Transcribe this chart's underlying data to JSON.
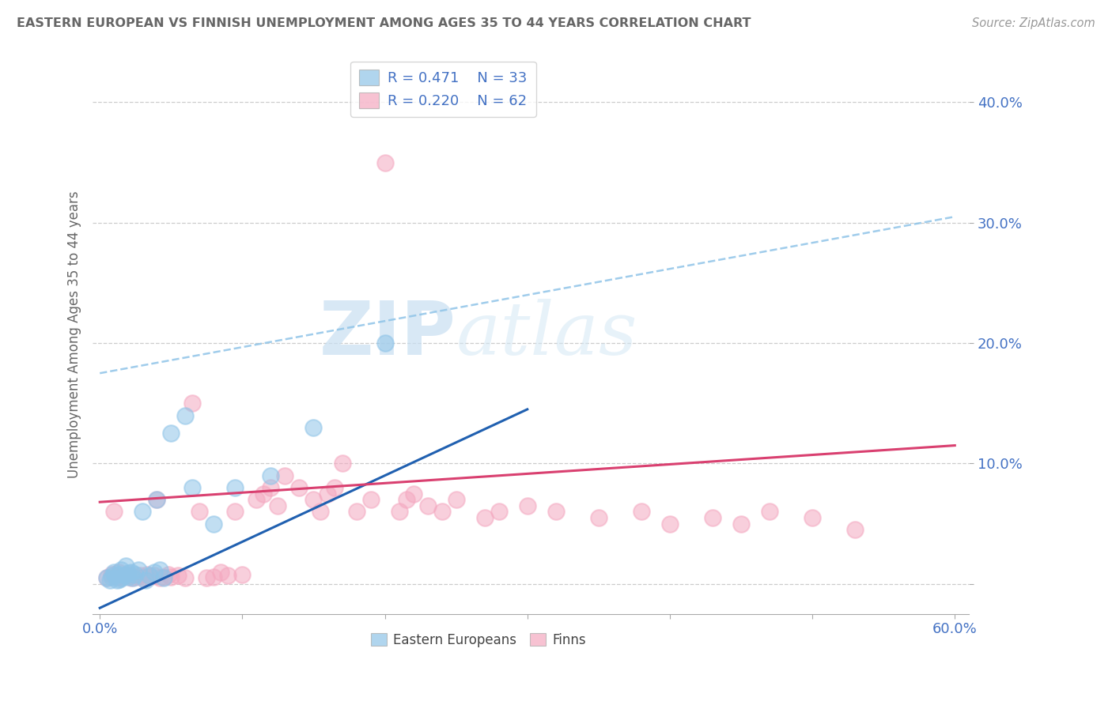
{
  "title": "EASTERN EUROPEAN VS FINNISH UNEMPLOYMENT AMONG AGES 35 TO 44 YEARS CORRELATION CHART",
  "source": "Source: ZipAtlas.com",
  "xlabel": "",
  "ylabel": "Unemployment Among Ages 35 to 44 years",
  "xlim": [
    -0.005,
    0.61
  ],
  "ylim": [
    -0.025,
    0.44
  ],
  "xticks": [
    0.0,
    0.1,
    0.2,
    0.3,
    0.4,
    0.5,
    0.6
  ],
  "xtick_labels": [
    "0.0%",
    "",
    "",
    "",
    "",
    "",
    "60.0%"
  ],
  "yticks": [
    0.0,
    0.1,
    0.2,
    0.3,
    0.4
  ],
  "ytick_labels": [
    "",
    "10.0%",
    "20.0%",
    "30.0%",
    "40.0%"
  ],
  "legend1_r": "0.471",
  "legend1_n": "33",
  "legend2_r": "0.220",
  "legend2_n": "62",
  "eastern_color": "#8fc4e8",
  "finn_color": "#f4a8c0",
  "eastern_line_color": "#2060b0",
  "finn_line_color": "#d94070",
  "dashed_line_color": "#8fc4e8",
  "watermark_zip": "ZIP",
  "watermark_atlas": "atlas",
  "grid_color": "#cccccc",
  "title_color": "#666666",
  "axis_color": "#4472c4",
  "eastern_scatter_x": [
    0.005,
    0.007,
    0.008,
    0.01,
    0.01,
    0.012,
    0.013,
    0.014,
    0.015,
    0.015,
    0.018,
    0.018,
    0.02,
    0.02,
    0.022,
    0.023,
    0.025,
    0.027,
    0.03,
    0.032,
    0.035,
    0.038,
    0.04,
    0.042,
    0.045,
    0.05,
    0.06,
    0.065,
    0.08,
    0.095,
    0.12,
    0.15,
    0.2
  ],
  "eastern_scatter_y": [
    0.005,
    0.003,
    0.006,
    0.008,
    0.01,
    0.003,
    0.008,
    0.004,
    0.012,
    0.005,
    0.007,
    0.015,
    0.006,
    0.009,
    0.01,
    0.005,
    0.008,
    0.012,
    0.06,
    0.003,
    0.007,
    0.01,
    0.07,
    0.012,
    0.005,
    0.125,
    0.14,
    0.08,
    0.05,
    0.08,
    0.09,
    0.13,
    0.2
  ],
  "finn_scatter_x": [
    0.005,
    0.008,
    0.01,
    0.012,
    0.013,
    0.015,
    0.018,
    0.02,
    0.022,
    0.025,
    0.028,
    0.03,
    0.033,
    0.035,
    0.038,
    0.04,
    0.042,
    0.045,
    0.048,
    0.05,
    0.055,
    0.06,
    0.065,
    0.07,
    0.075,
    0.08,
    0.085,
    0.09,
    0.095,
    0.1,
    0.11,
    0.115,
    0.12,
    0.125,
    0.13,
    0.14,
    0.15,
    0.155,
    0.16,
    0.165,
    0.17,
    0.18,
    0.19,
    0.2,
    0.21,
    0.215,
    0.22,
    0.23,
    0.24,
    0.25,
    0.27,
    0.28,
    0.3,
    0.32,
    0.35,
    0.38,
    0.4,
    0.43,
    0.45,
    0.47,
    0.5,
    0.53
  ],
  "finn_scatter_y": [
    0.005,
    0.008,
    0.06,
    0.006,
    0.01,
    0.005,
    0.007,
    0.008,
    0.005,
    0.006,
    0.007,
    0.005,
    0.008,
    0.006,
    0.007,
    0.07,
    0.005,
    0.006,
    0.008,
    0.006,
    0.007,
    0.005,
    0.15,
    0.06,
    0.005,
    0.006,
    0.01,
    0.007,
    0.06,
    0.008,
    0.07,
    0.075,
    0.08,
    0.065,
    0.09,
    0.08,
    0.07,
    0.06,
    0.075,
    0.08,
    0.1,
    0.06,
    0.07,
    0.35,
    0.06,
    0.07,
    0.075,
    0.065,
    0.06,
    0.07,
    0.055,
    0.06,
    0.065,
    0.06,
    0.055,
    0.06,
    0.05,
    0.055,
    0.05,
    0.06,
    0.055,
    0.045
  ],
  "eastern_line_x0": 0.0,
  "eastern_line_y0": -0.02,
  "eastern_line_x1": 0.3,
  "eastern_line_y1": 0.145,
  "finn_line_x0": 0.0,
  "finn_line_y0": 0.068,
  "finn_line_x1": 0.6,
  "finn_line_y1": 0.115,
  "dashed_line_x0": 0.0,
  "dashed_line_y0": 0.175,
  "dashed_line_x1": 0.6,
  "dashed_line_y1": 0.305
}
